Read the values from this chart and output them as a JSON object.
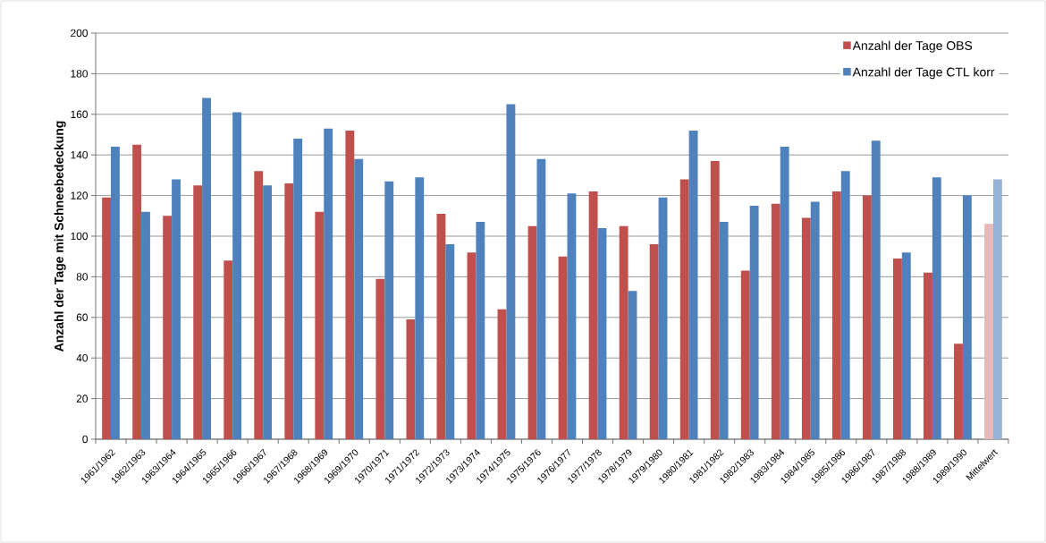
{
  "chart_data": {
    "type": "bar",
    "ylabel": "Anzahl der Tage mit Schneebedeckung",
    "categories": [
      "1961/1962",
      "1962/1963",
      "1963/1964",
      "1964/1965",
      "1965/1966",
      "1966/1967",
      "1967/1968",
      "1968/1969",
      "1969/1970",
      "1970/1971",
      "1971/1972",
      "1972/1973",
      "1973/1974",
      "1974/1975",
      "1975/1976",
      "1976/1977",
      "1977/1978",
      "1978/1979",
      "1979/1980",
      "1980/1981",
      "1981/1982",
      "1982/1983",
      "1983/1984",
      "1984/1985",
      "1985/1986",
      "1986/1987",
      "1987/1988",
      "1988/1989",
      "1989/1990",
      "Mittelwert"
    ],
    "series": [
      {
        "name": "Anzahl der Tage OBS",
        "color": "#c0504d",
        "colors": [
          "#c0504d",
          "#c0504d",
          "#c0504d",
          "#c0504d",
          "#c0504d",
          "#c0504d",
          "#c0504d",
          "#c0504d",
          "#c0504d",
          "#c0504d",
          "#c0504d",
          "#c0504d",
          "#c0504d",
          "#c0504d",
          "#c0504d",
          "#c0504d",
          "#c0504d",
          "#c0504d",
          "#c0504d",
          "#c0504d",
          "#c0504d",
          "#c0504d",
          "#c0504d",
          "#c0504d",
          "#c0504d",
          "#c0504d",
          "#c0504d",
          "#c0504d",
          "#c0504d",
          "#e6b9b8"
        ],
        "values": [
          119,
          145,
          110,
          125,
          88,
          132,
          126,
          112,
          152,
          79,
          59,
          111,
          92,
          64,
          105,
          90,
          122,
          105,
          96,
          128,
          137,
          83,
          116,
          109,
          122,
          120,
          89,
          82,
          47,
          106
        ]
      },
      {
        "name": "Anzahl der Tage CTL korr",
        "color": "#4f81bd",
        "colors": [
          "#4f81bd",
          "#4f81bd",
          "#4f81bd",
          "#4f81bd",
          "#4f81bd",
          "#4f81bd",
          "#4f81bd",
          "#4f81bd",
          "#4f81bd",
          "#4f81bd",
          "#4f81bd",
          "#4f81bd",
          "#4f81bd",
          "#4f81bd",
          "#4f81bd",
          "#4f81bd",
          "#4f81bd",
          "#4f81bd",
          "#4f81bd",
          "#4f81bd",
          "#4f81bd",
          "#4f81bd",
          "#4f81bd",
          "#4f81bd",
          "#4f81bd",
          "#4f81bd",
          "#4f81bd",
          "#4f81bd",
          "#4f81bd",
          "#95b3d7"
        ],
        "values": [
          144,
          112,
          128,
          168,
          161,
          125,
          148,
          153,
          138,
          127,
          129,
          96,
          107,
          165,
          138,
          121,
          104,
          73,
          119,
          152,
          107,
          115,
          144,
          117,
          132,
          147,
          92,
          129,
          120,
          128
        ]
      }
    ],
    "ylim": [
      0,
      200
    ],
    "yticks": [
      0,
      20,
      40,
      60,
      80,
      100,
      120,
      140,
      160,
      180,
      200
    ],
    "grid": "y",
    "legend": "top right"
  }
}
